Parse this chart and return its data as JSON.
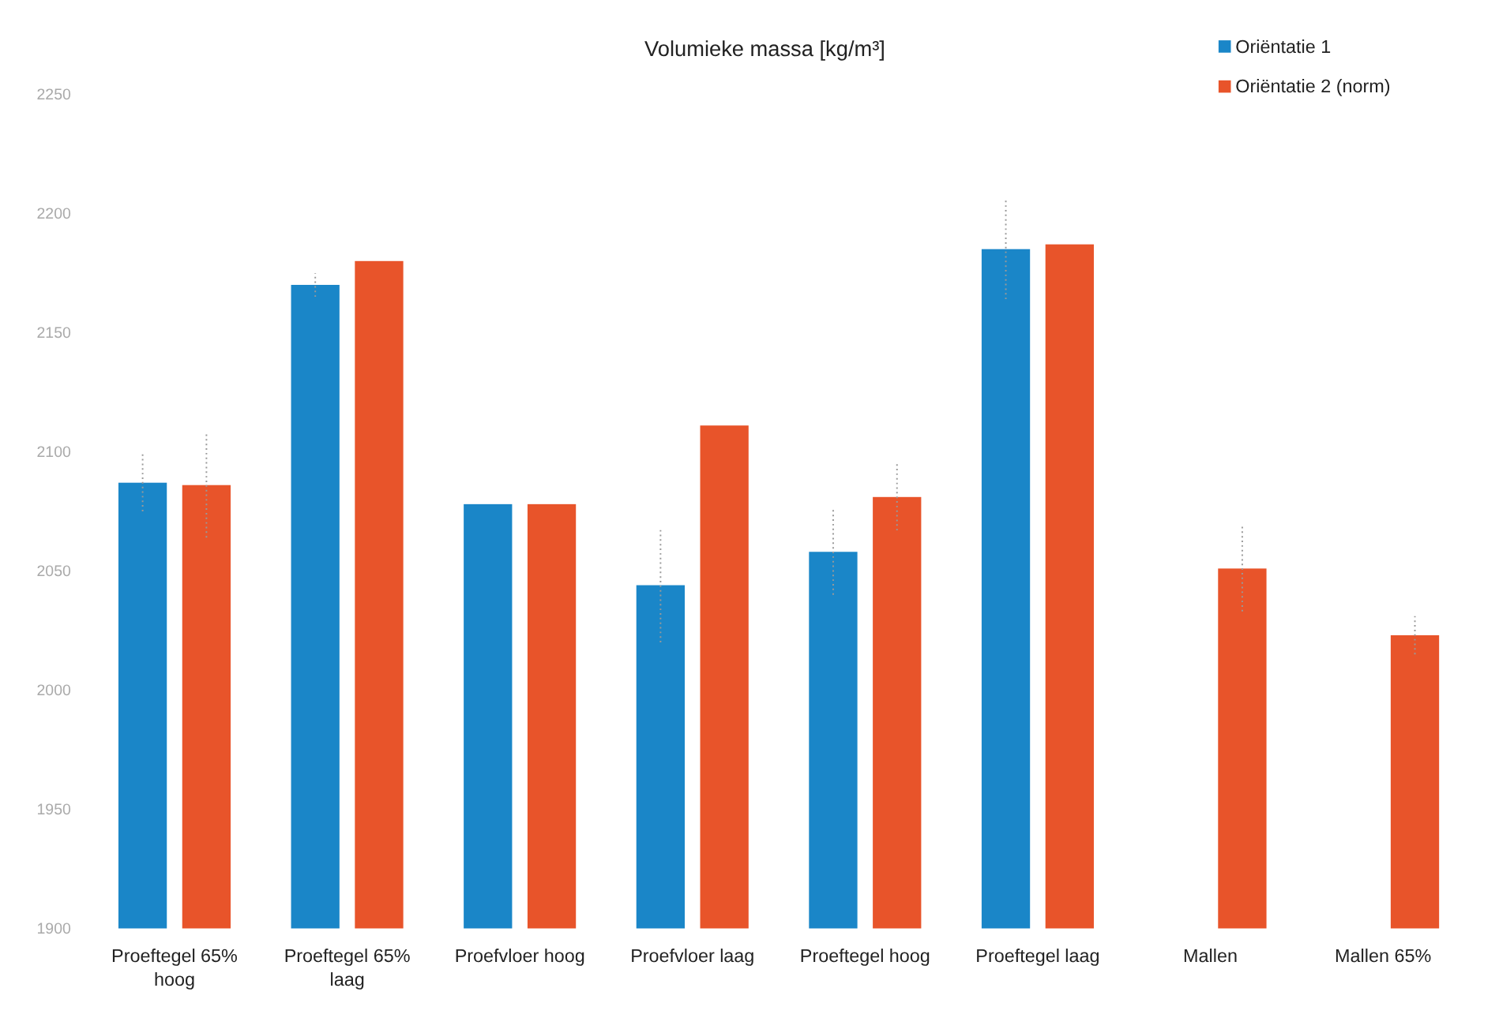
{
  "chart_data": {
    "type": "bar",
    "title": "Volumieke massa [kg/m³]",
    "categories": [
      "Proeftegel 65% hoog",
      "Proeftegel 65% laag",
      "Proefvloer hoog",
      "Proefvloer laag",
      "Proeftegel hoog",
      "Proeftegel laag",
      "Mallen",
      "Mallen 65%"
    ],
    "series": [
      {
        "name": "Oriëntatie 1",
        "color": "#1a86c8",
        "values": [
          2087,
          2170,
          2078,
          2044,
          2058,
          2185,
          null,
          null
        ],
        "errors": [
          12,
          5,
          null,
          24,
          18,
          21,
          null,
          null
        ]
      },
      {
        "name": "Oriëntatie 2 (norm)",
        "color": "#e8542a",
        "values": [
          2086,
          2180,
          2078,
          2111,
          2081,
          2187,
          2051,
          2023
        ],
        "errors": [
          22,
          null,
          null,
          null,
          14,
          null,
          18,
          8
        ]
      }
    ],
    "ylim": [
      1900,
      2250
    ],
    "yticks": [
      1900,
      1950,
      2000,
      2050,
      2100,
      2150,
      2200,
      2250
    ],
    "grid": false,
    "legend": "top right"
  }
}
